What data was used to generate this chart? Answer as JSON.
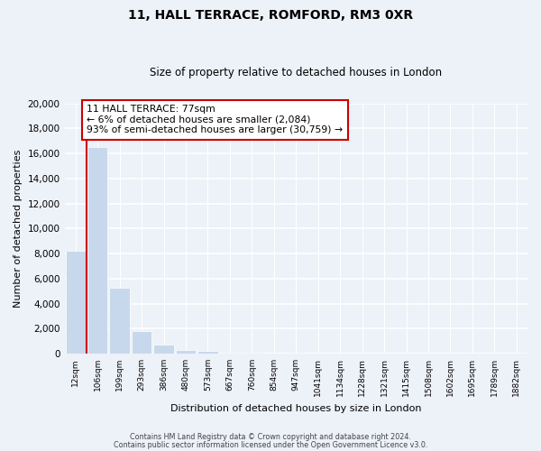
{
  "title": "11, HALL TERRACE, ROMFORD, RM3 0XR",
  "subtitle": "Size of property relative to detached houses in London",
  "xlabel": "Distribution of detached houses by size in London",
  "ylabel": "Number of detached properties",
  "bar_color": "#c8d8ec",
  "highlight_color": "#cc0000",
  "categories": [
    "12sqm",
    "106sqm",
    "199sqm",
    "293sqm",
    "386sqm",
    "480sqm",
    "573sqm",
    "667sqm",
    "760sqm",
    "854sqm",
    "947sqm",
    "1041sqm",
    "1134sqm",
    "1228sqm",
    "1321sqm",
    "1415sqm",
    "1508sqm",
    "1602sqm",
    "1695sqm",
    "1789sqm",
    "1882sqm"
  ],
  "values": [
    8200,
    16500,
    5300,
    1800,
    750,
    300,
    200,
    100,
    50,
    30,
    20,
    10,
    5,
    5,
    5,
    5,
    5,
    5,
    5,
    5,
    5
  ],
  "ylim": [
    0,
    20000
  ],
  "yticks": [
    0,
    2000,
    4000,
    6000,
    8000,
    10000,
    12000,
    14000,
    16000,
    18000,
    20000
  ],
  "property_label": "11 HALL TERRACE: 77sqm",
  "pct_smaller": "6%",
  "count_smaller": "2,084",
  "pct_larger": "93%",
  "count_larger": "30,759",
  "footer_line1": "Contains HM Land Registry data © Crown copyright and database right 2024.",
  "footer_line2": "Contains public sector information licensed under the Open Government Licence v3.0.",
  "background_color": "#edf1f8"
}
